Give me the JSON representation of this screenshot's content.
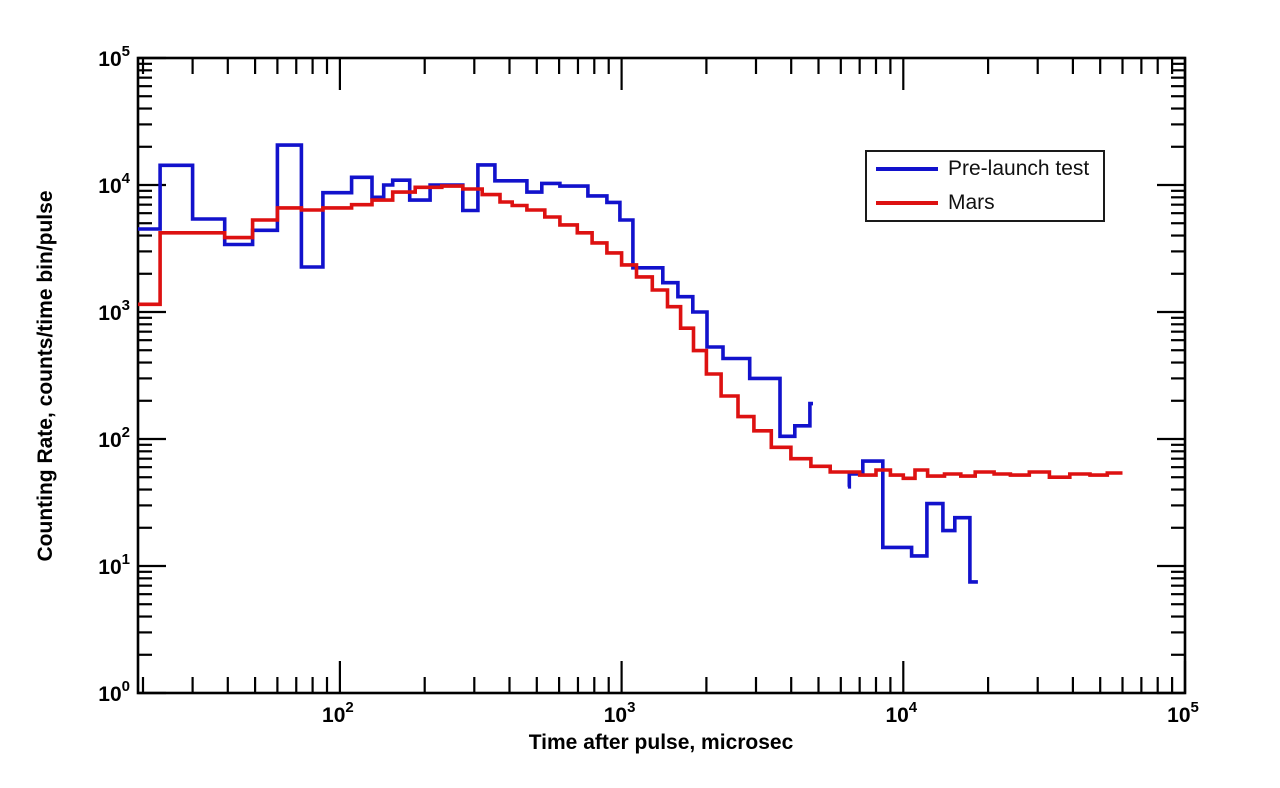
{
  "chart_data": {
    "type": "line",
    "subtype": "step-histogram",
    "title": "",
    "xlabel": "Time after pulse, microsec",
    "ylabel": "Counting Rate, counts/time bin/pulse",
    "x_scale": "log",
    "y_scale": "log",
    "xlim": [
      19.2,
      100000
    ],
    "ylim": [
      1,
      100000
    ],
    "grid": false,
    "tick_label_base": "10",
    "x_major_tick_exponents": [
      2,
      3,
      4,
      5
    ],
    "y_major_tick_exponents": [
      0,
      1,
      2,
      3,
      4,
      5
    ],
    "frame_color": "#000000",
    "legend": {
      "position": "upper right",
      "border": true,
      "entries": [
        {
          "label": "Pre-launch test",
          "color": "#1212cc"
        },
        {
          "label": "Mars",
          "color": "#dd1111"
        }
      ]
    },
    "series": [
      {
        "name": "Pre-launch test",
        "color": "#1212cc",
        "segments": [
          {
            "points": [
              [
                19.2,
                4500
              ],
              [
                23,
                14300
              ],
              [
                30,
                5400
              ],
              [
                39,
                3400
              ],
              [
                49,
                4400
              ],
              [
                60,
                20600
              ],
              [
                73,
                2260
              ],
              [
                87,
                8700
              ],
              [
                110,
                11500
              ],
              [
                130,
                8000
              ],
              [
                143,
                10000
              ],
              [
                154,
                10900
              ],
              [
                177,
                7600
              ],
              [
                209,
                10000
              ],
              [
                273,
                6300
              ],
              [
                309,
                14400
              ],
              [
                355,
                10800
              ],
              [
                461,
                8800
              ],
              [
                521,
                10300
              ],
              [
                604,
                9800
              ],
              [
                759,
                8200
              ],
              [
                887,
                7300
              ],
              [
                986,
                5300
              ],
              [
                1097,
                2230
              ],
              [
                1400,
                1700
              ],
              [
                1585,
                1320
              ],
              [
                1790,
                1000
              ],
              [
                2010,
                530
              ],
              [
                2290,
                430
              ],
              [
                2850,
                300
              ],
              [
                3650,
                105
              ],
              [
                4120,
                127
              ],
              [
                4660,
                190
              ]
            ],
            "t_end": 4780
          },
          {
            "points": [
              [
                6360,
                42
              ],
              [
                6430,
                53
              ],
              [
                7180,
                67
              ],
              [
                8460,
                14
              ],
              [
                10700,
                12
              ],
              [
                12130,
                31
              ],
              [
                13820,
                19
              ],
              [
                15240,
                24
              ],
              [
                17230,
                7.5
              ]
            ],
            "t_end": 18400
          }
        ]
      },
      {
        "name": "Mars",
        "color": "#dd1111",
        "segments": [
          {
            "points": [
              [
                19.2,
                1150
              ],
              [
                23,
                4200
              ],
              [
                39,
                3850
              ],
              [
                49,
                5300
              ],
              [
                60,
                6600
              ],
              [
                73,
                6350
              ],
              [
                87,
                6600
              ],
              [
                110,
                7000
              ],
              [
                130,
                7600
              ],
              [
                154,
                8800
              ],
              [
                185,
                9600
              ],
              [
                230,
                9800
              ],
              [
                273,
                9300
              ],
              [
                320,
                8400
              ],
              [
                370,
                7350
              ],
              [
                409,
                6900
              ],
              [
                461,
                6350
              ],
              [
                534,
                5600
              ],
              [
                604,
                4850
              ],
              [
                696,
                4200
              ],
              [
                786,
                3500
              ],
              [
                887,
                2920
              ],
              [
                1000,
                2350
              ],
              [
                1130,
                1890
              ],
              [
                1285,
                1490
              ],
              [
                1455,
                1100
              ],
              [
                1620,
                745
              ],
              [
                1800,
                497
              ],
              [
                2000,
                325
              ],
              [
                2255,
                218
              ],
              [
                2590,
                150
              ],
              [
                2950,
                116
              ],
              [
                3400,
                86
              ],
              [
                3990,
                70
              ],
              [
                4700,
                61
              ],
              [
                5500,
                55
              ],
              [
                7000,
                52
              ],
              [
                8000,
                57
              ],
              [
                9000,
                52
              ],
              [
                10000,
                49
              ],
              [
                11000,
                57
              ],
              [
                12200,
                51
              ],
              [
                14000,
                53
              ],
              [
                16000,
                51
              ],
              [
                18000,
                55
              ],
              [
                21000,
                53
              ],
              [
                24000,
                52
              ],
              [
                28000,
                55
              ],
              [
                33000,
                50
              ],
              [
                39000,
                53
              ],
              [
                46000,
                52
              ],
              [
                53000,
                54
              ]
            ],
            "t_end": 60000
          }
        ]
      }
    ]
  }
}
